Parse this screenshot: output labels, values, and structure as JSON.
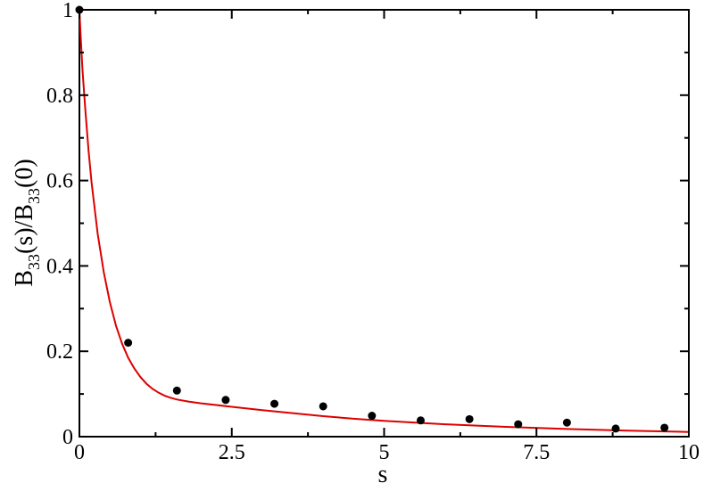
{
  "chart_data": {
    "type": "scatter",
    "xlabel": "s",
    "ylabel": {
      "prefix": "B",
      "sub1": "33",
      "middle": "(s)/B",
      "sub2": "33",
      "suffix": "(0)"
    },
    "xlim": [
      0,
      10
    ],
    "ylim": [
      0,
      1
    ],
    "x_ticks": [
      0,
      2.5,
      5,
      7.5,
      10
    ],
    "x_tick_labels": [
      "0",
      "2.5",
      "5",
      "7.5",
      "10"
    ],
    "y_ticks": [
      0,
      0.2,
      0.4,
      0.6,
      0.8,
      1
    ],
    "y_tick_labels": [
      "0",
      "0.2",
      "0.4",
      "0.6",
      "0.8",
      "1"
    ],
    "grid": false,
    "colors": {
      "points": "#000000",
      "line": "#dd0000",
      "axes": "#000000"
    },
    "series": [
      {
        "kind": "scatter",
        "x": [
          0,
          0.8,
          1.6,
          2.4,
          3.2,
          4.0,
          4.8,
          5.6,
          6.4,
          7.2,
          8.0,
          8.8,
          9.6
        ],
        "y": [
          1.0,
          0.22,
          0.108,
          0.086,
          0.077,
          0.071,
          0.049,
          0.038,
          0.041,
          0.029,
          0.033,
          0.019,
          0.021
        ]
      },
      {
        "kind": "line",
        "x": [
          0,
          0.02,
          0.05,
          0.1,
          0.15,
          0.2,
          0.3,
          0.4,
          0.5,
          0.6,
          0.7,
          0.8,
          0.9,
          1.0,
          1.1,
          1.2,
          1.3,
          1.4,
          1.5,
          1.6,
          1.8,
          2.0,
          2.5,
          3.0,
          3.5,
          4.0,
          4.5,
          5.0,
          6.0,
          7.0,
          8.0,
          9.0,
          10.0
        ],
        "y": [
          1.0,
          0.94,
          0.86,
          0.76,
          0.67,
          0.595,
          0.475,
          0.385,
          0.315,
          0.26,
          0.218,
          0.185,
          0.16,
          0.14,
          0.124,
          0.112,
          0.103,
          0.096,
          0.091,
          0.087,
          0.082,
          0.078,
          0.07,
          0.062,
          0.055,
          0.048,
          0.042,
          0.037,
          0.029,
          0.023,
          0.018,
          0.014,
          0.011
        ]
      }
    ]
  }
}
